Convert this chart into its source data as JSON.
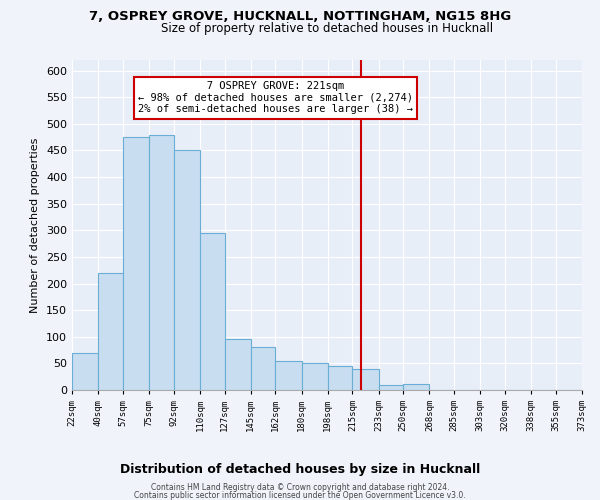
{
  "title": "7, OSPREY GROVE, HUCKNALL, NOTTINGHAM, NG15 8HG",
  "subtitle": "Size of property relative to detached houses in Hucknall",
  "xlabel": "Distribution of detached houses by size in Hucknall",
  "ylabel": "Number of detached properties",
  "bin_edges": [
    22,
    40,
    57,
    75,
    92,
    110,
    127,
    145,
    162,
    180,
    198,
    215,
    233,
    250,
    268,
    285,
    303,
    320,
    338,
    355,
    373
  ],
  "bar_heights": [
    70,
    220,
    475,
    480,
    450,
    295,
    95,
    80,
    55,
    50,
    45,
    40,
    10,
    12,
    0,
    0,
    0,
    0,
    0,
    0
  ],
  "bar_color": "#c8ddf0",
  "bar_edge_color": "#6aaed6",
  "property_line_x": 221,
  "property_line_color": "#cc0000",
  "annotation_title": "7 OSPREY GROVE: 221sqm",
  "annotation_line1": "← 98% of detached houses are smaller (2,274)",
  "annotation_line2": "2% of semi-detached houses are larger (38) →",
  "annotation_box_edge": "#cc0000",
  "ylim": [
    0,
    620
  ],
  "yticks": [
    0,
    50,
    100,
    150,
    200,
    250,
    300,
    350,
    400,
    450,
    500,
    550,
    600
  ],
  "tick_labels": [
    "22sqm",
    "40sqm",
    "57sqm",
    "75sqm",
    "92sqm",
    "110sqm",
    "127sqm",
    "145sqm",
    "162sqm",
    "180sqm",
    "198sqm",
    "215sqm",
    "233sqm",
    "250sqm",
    "268sqm",
    "285sqm",
    "303sqm",
    "320sqm",
    "338sqm",
    "355sqm",
    "373sqm"
  ],
  "footer1": "Contains HM Land Registry data © Crown copyright and database right 2024.",
  "footer2": "Contains public sector information licensed under the Open Government Licence v3.0.",
  "plot_bg_color": "#e8eef8",
  "fig_bg_color": "#f0f4fa",
  "grid_color": "#ffffff"
}
